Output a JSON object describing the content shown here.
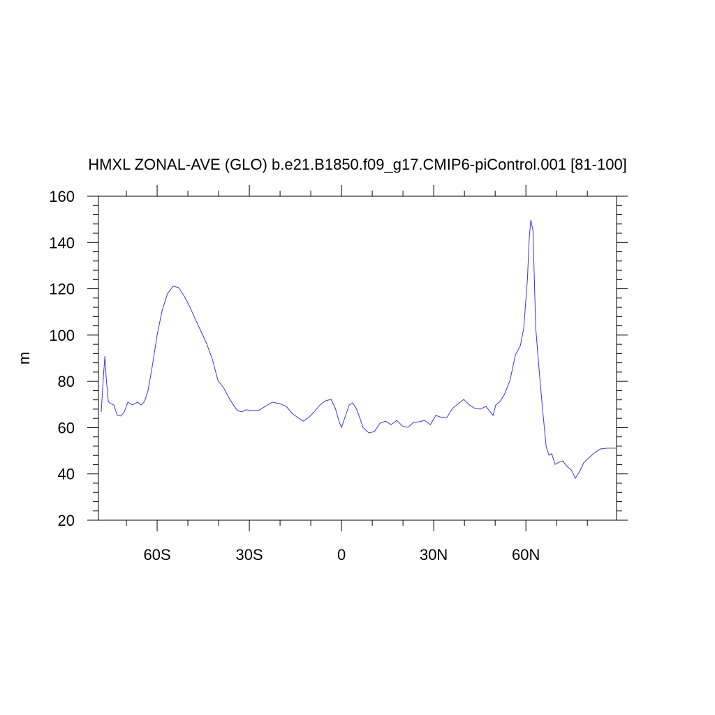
{
  "chart_data": {
    "type": "line",
    "title": "HMXL ZONAL-AVE (GLO) b.e21.B1850.f09_g17.CMIP6-piControl.001 [81-100]",
    "y_label": "m",
    "xlim": [
      -79.1,
      89.5
    ],
    "ylim": [
      20,
      160
    ],
    "xticks": [
      {
        "value": -60,
        "label": "60S"
      },
      {
        "value": -30,
        "label": "30S"
      },
      0,
      {
        "value": 30,
        "label": "30N"
      },
      {
        "value": 60,
        "label": "60N"
      }
    ],
    "xminor_ticks": [
      -70,
      -50,
      -40,
      -20,
      -10,
      10,
      20,
      40,
      50,
      70,
      80
    ],
    "yticks": [
      20,
      40,
      60,
      80,
      100,
      120,
      140,
      160
    ],
    "yminor_ticks": [
      24,
      28,
      32,
      36,
      44,
      48,
      52,
      56,
      64,
      68,
      72,
      76,
      84,
      88,
      92,
      96,
      104,
      108,
      112,
      116,
      124,
      128,
      132,
      136,
      144,
      148,
      152,
      156
    ],
    "grid": false,
    "series": [
      {
        "name": "HMXL",
        "color": "#3333ff",
        "x": [
          -78.2,
          -77.5,
          -77,
          -76.6,
          -75.9,
          -75.2,
          -74.1,
          -73,
          -71.8,
          -70.7,
          -69.5,
          -68,
          -66.4,
          -65.2,
          -64.1,
          -63,
          -61.6,
          -60,
          -58.4,
          -56.6,
          -54.8,
          -53,
          -51.1,
          -49.3,
          -47.5,
          -45.7,
          -43.9,
          -42,
          -40.2,
          -38.4,
          -36.6,
          -35.2,
          -33.9,
          -32.5,
          -31.1,
          -29.3,
          -27,
          -24.8,
          -22.5,
          -20.2,
          -18,
          -16.1,
          -14.3,
          -12.5,
          -10.7,
          -8.9,
          -7,
          -5.2,
          -3.4,
          -2,
          -0.7,
          0,
          1.1,
          2.5,
          3.6,
          4.8,
          5.9,
          7,
          8.9,
          10.7,
          12.5,
          14.3,
          16.1,
          18,
          19.8,
          21.6,
          23.4,
          25.2,
          27,
          28.9,
          30.7,
          32.5,
          34.3,
          36.1,
          38,
          39.8,
          41.6,
          43.4,
          45.2,
          47,
          48.4,
          49.3,
          50.2,
          51.6,
          53,
          54.8,
          56.6,
          58.2,
          59.3,
          60.5,
          61.1,
          61.6,
          62.3,
          63.2,
          64.3,
          65.5,
          66.6,
          67.5,
          68.4,
          69.5,
          70.7,
          72,
          73.4,
          74.8,
          76.1,
          77.5,
          78.9,
          80.7,
          82.5,
          84.3,
          86.6,
          89.5
        ],
        "values": [
          66.8,
          81.9,
          90.9,
          81.9,
          71.3,
          70.4,
          69.8,
          65.3,
          65,
          66.8,
          71,
          69.8,
          71,
          69.8,
          71.3,
          75.8,
          86.4,
          100,
          110.5,
          118,
          121.1,
          120.5,
          116.6,
          112,
          106.6,
          101.5,
          96.3,
          89.4,
          80.3,
          77.3,
          72.8,
          69.8,
          67.4,
          66.8,
          67.7,
          67.4,
          67.4,
          69.2,
          71,
          70.4,
          69.2,
          66.2,
          64.4,
          62.8,
          64.4,
          66.8,
          69.8,
          71.6,
          72.2,
          68.3,
          62.2,
          60.1,
          64.4,
          69.8,
          70.7,
          68.3,
          64.4,
          60.1,
          57.7,
          58.3,
          61.9,
          62.8,
          61.3,
          63.1,
          60.7,
          60.1,
          62.2,
          62.5,
          63.1,
          61.3,
          65.3,
          64.4,
          64.4,
          68.3,
          70.4,
          72.2,
          69.8,
          68.3,
          68,
          69.2,
          66.8,
          65.3,
          69.8,
          71.3,
          74.3,
          80.3,
          91.5,
          95.4,
          103,
          124.1,
          142.2,
          149.8,
          145.2,
          103,
          84.9,
          66.8,
          51.7,
          48.1,
          48.7,
          44.1,
          45,
          45.6,
          43.2,
          41.7,
          38.1,
          41.1,
          45,
          47.2,
          49.3,
          50.8,
          51.1,
          51.1
        ]
      }
    ]
  }
}
